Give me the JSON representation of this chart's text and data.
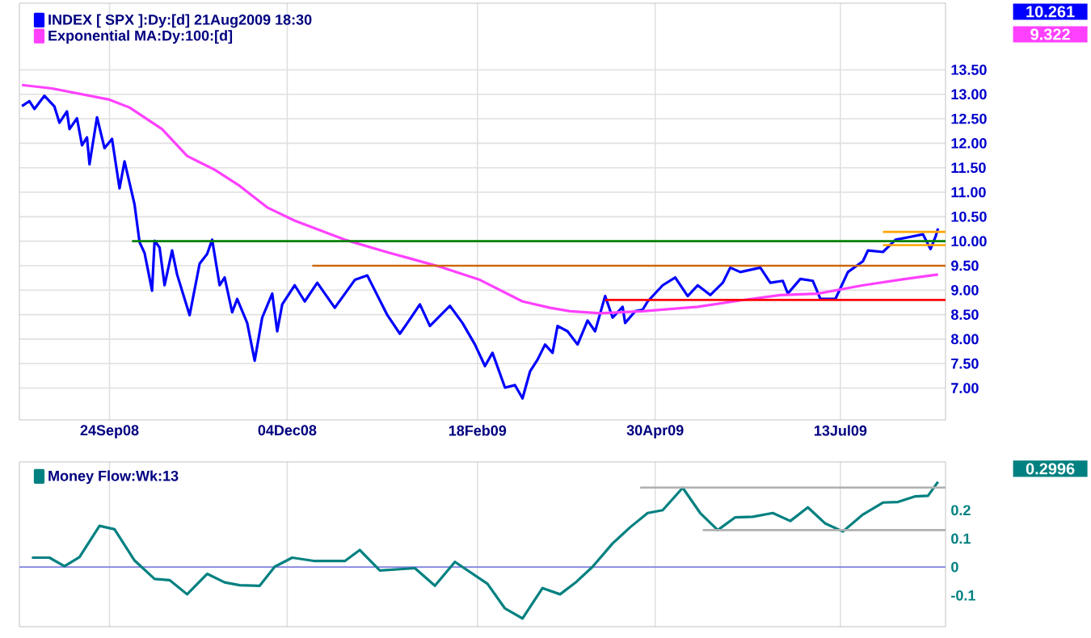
{
  "chart_data": [
    {
      "type": "line",
      "legend": "top left",
      "grid": true,
      "xlim": [
        "2008-08-19",
        "2009-08-24"
      ],
      "ylim": [
        6.35,
        14.86
      ],
      "xticks": [
        {
          "value": "2008-09-24",
          "label": "24Sep08"
        },
        {
          "value": "2008-12-04",
          "label": "04Dec08"
        },
        {
          "value": "2009-02-18",
          "label": "18Feb09"
        },
        {
          "value": "2009-04-30",
          "label": "30Apr09"
        },
        {
          "value": "2009-07-13",
          "label": "13Jul09"
        }
      ],
      "yticks": [
        {
          "value": 7,
          "label": "7.00"
        },
        {
          "value": 7.5,
          "label": "7.50"
        },
        {
          "value": 8,
          "label": "8.00"
        },
        {
          "value": 8.5,
          "label": "8.50"
        },
        {
          "value": 9,
          "label": "9.00"
        },
        {
          "value": 9.5,
          "label": "9.50"
        },
        {
          "value": 10,
          "label": "10.00"
        },
        {
          "value": 10.5,
          "label": "10.50"
        },
        {
          "value": 11,
          "label": "11.00"
        },
        {
          "value": 11.5,
          "label": "11.50"
        },
        {
          "value": 12,
          "label": "12.00"
        },
        {
          "value": 12.5,
          "label": "12.50"
        },
        {
          "value": 13,
          "label": "13.00"
        },
        {
          "value": 13.5,
          "label": "13.50"
        }
      ],
      "annotations": [
        "10.261",
        "9.322"
      ],
      "series": [
        {
          "name": "INDEX [ SPX ]:Dy:[d]  21Aug2009 18:30",
          "color": "#0000ff",
          "x": [
            "2008-08-20",
            "2008-08-23",
            "2008-08-25",
            "2008-08-29",
            "2008-09-02",
            "2008-09-04",
            "2008-09-07",
            "2008-09-08",
            "2008-09-11",
            "2008-09-13",
            "2008-09-15",
            "2008-09-16",
            "2008-09-19",
            "2008-09-22",
            "2008-09-25",
            "2008-09-28",
            "2008-09-30",
            "2008-10-04",
            "2008-10-06",
            "2008-10-08",
            "2008-10-11",
            "2008-10-12",
            "2008-10-14",
            "2008-10-16",
            "2008-10-19",
            "2008-10-21",
            "2008-10-26",
            "2008-10-30",
            "2008-11-02",
            "2008-11-04",
            "2008-11-07",
            "2008-11-09",
            "2008-11-12",
            "2008-11-14",
            "2008-11-18",
            "2008-11-21",
            "2008-11-24",
            "2008-11-28",
            "2008-11-30",
            "2008-12-02",
            "2008-12-07",
            "2008-12-11",
            "2008-12-16",
            "2008-12-23",
            "2008-12-31",
            "2009-01-05",
            "2009-01-13",
            "2009-01-18",
            "2009-01-21",
            "2009-01-26",
            "2009-01-30",
            "2009-02-07",
            "2009-02-12",
            "2009-02-17",
            "2009-02-21",
            "2009-02-24",
            "2009-03-01",
            "2009-03-05",
            "2009-03-08",
            "2009-03-11",
            "2009-03-14",
            "2009-03-17",
            "2009-03-20",
            "2009-03-22",
            "2009-03-26",
            "2009-03-30",
            "2009-04-03",
            "2009-04-06",
            "2009-04-10",
            "2009-04-13",
            "2009-04-17",
            "2009-04-18",
            "2009-04-22",
            "2009-04-25",
            "2009-04-27",
            "2009-05-03",
            "2009-05-08",
            "2009-05-13",
            "2009-05-17",
            "2009-05-22",
            "2009-05-27",
            "2009-05-30",
            "2009-06-03",
            "2009-06-11",
            "2009-06-15",
            "2009-06-20",
            "2009-06-22",
            "2009-06-27",
            "2009-07-02",
            "2009-07-05",
            "2009-07-11",
            "2009-07-16",
            "2009-07-22",
            "2009-07-24",
            "2009-07-30",
            "2009-08-04",
            "2009-08-10",
            "2009-08-15",
            "2009-08-18",
            "2009-08-20",
            "2009-08-21"
          ],
          "values": [
            12.76,
            12.86,
            12.7,
            12.97,
            12.75,
            12.42,
            12.65,
            12.29,
            12.51,
            11.96,
            12.12,
            11.57,
            12.53,
            11.9,
            12.09,
            11.08,
            11.63,
            10.75,
            9.98,
            9.76,
            8.99,
            10.01,
            9.87,
            9.1,
            9.81,
            9.32,
            8.49,
            9.54,
            9.74,
            10.03,
            9.1,
            9.26,
            8.55,
            8.82,
            8.33,
            7.56,
            8.44,
            8.93,
            8.16,
            8.71,
            9.1,
            8.77,
            9.15,
            8.64,
            9.21,
            9.3,
            8.49,
            8.11,
            8.33,
            8.71,
            8.27,
            8.68,
            8.33,
            7.89,
            7.45,
            7.72,
            7.01,
            7.06,
            6.79,
            7.34,
            7.58,
            7.89,
            7.72,
            8.27,
            8.16,
            7.89,
            8.38,
            8.16,
            8.88,
            8.44,
            8.66,
            8.33,
            8.57,
            8.6,
            8.77,
            9.1,
            9.26,
            8.88,
            9.1,
            8.9,
            9.15,
            9.46,
            9.37,
            9.46,
            9.15,
            9.19,
            8.93,
            9.23,
            9.19,
            8.82,
            8.82,
            9.37,
            9.59,
            9.81,
            9.78,
            10.03,
            10.09,
            10.14,
            9.84,
            10.09,
            10.26
          ]
        },
        {
          "name": "Exponential MA:Dy:100:[d]",
          "color": "#ff40ff",
          "x": [
            "2008-08-20",
            "2008-09-01",
            "2008-09-24",
            "2008-10-02",
            "2008-10-15",
            "2008-10-25",
            "2008-11-05",
            "2008-11-15",
            "2008-11-26",
            "2008-12-07",
            "2008-12-27",
            "2009-01-14",
            "2009-02-03",
            "2009-02-19",
            "2009-03-08",
            "2009-03-19",
            "2009-03-27",
            "2009-04-08",
            "2009-04-25",
            "2009-05-17",
            "2009-06-03",
            "2009-06-19",
            "2009-07-04",
            "2009-07-22",
            "2009-08-08",
            "2009-08-21"
          ],
          "values": [
            13.19,
            13.12,
            12.89,
            12.73,
            12.29,
            11.74,
            11.46,
            11.13,
            10.69,
            10.42,
            10.03,
            9.76,
            9.48,
            9.21,
            8.77,
            8.64,
            8.57,
            8.53,
            8.57,
            8.66,
            8.79,
            8.9,
            8.93,
            9.1,
            9.23,
            9.32
          ]
        },
        {
          "color": "#008000",
          "x": [
            "2008-10-03",
            "2009-08-24"
          ],
          "values": [
            10.0,
            10.0
          ]
        },
        {
          "color": "#cc6600",
          "x": [
            "2008-12-14",
            "2009-08-24"
          ],
          "values": [
            9.5,
            9.5
          ]
        },
        {
          "color": "#ff0000",
          "x": [
            "2009-04-10",
            "2009-08-24"
          ],
          "values": [
            8.8,
            8.8
          ]
        },
        {
          "color": "#ffa500",
          "x": [
            "2009-07-30",
            "2009-08-24"
          ],
          "values": [
            10.19,
            10.19
          ]
        },
        {
          "color": "#ffa500",
          "x": [
            "2009-07-30",
            "2009-08-24"
          ],
          "values": [
            9.92,
            9.92
          ]
        }
      ]
    },
    {
      "type": "line",
      "legend": "top left",
      "grid": "x",
      "tick_labels": "y",
      "xlim": [
        "2008-08-19",
        "2009-08-24"
      ],
      "ylim": [
        -0.21,
        0.37
      ],
      "xticks": [
        {
          "value": "2008-09-24",
          "label": null
        },
        {
          "value": "2008-12-04",
          "label": null
        },
        {
          "value": "2009-02-18",
          "label": null
        },
        {
          "value": "2009-04-30",
          "label": null
        },
        {
          "value": "2009-07-13",
          "label": null
        }
      ],
      "yticks": [
        -0.1,
        0,
        0.1,
        0.2
      ],
      "annotations": [
        "0.2996"
      ],
      "ref_lines": [
        {
          "axis": "y",
          "value": 0,
          "color": "#8080e0"
        }
      ],
      "series": [
        {
          "name": "Money Flow:Wk:13",
          "color": "#008080",
          "x": [
            "2008-08-24",
            "2008-08-31",
            "2008-09-06",
            "2008-09-12",
            "2008-09-20",
            "2008-09-26",
            "2008-10-04",
            "2008-10-12",
            "2008-10-18",
            "2008-10-25",
            "2008-11-02",
            "2008-11-09",
            "2008-11-15",
            "2008-11-23",
            "2008-11-29",
            "2008-12-06",
            "2008-12-15",
            "2008-12-27",
            "2009-01-02",
            "2009-01-10",
            "2009-01-24",
            "2009-02-01",
            "2009-02-09",
            "2009-02-22",
            "2009-03-01",
            "2009-03-08",
            "2009-03-16",
            "2009-03-23",
            "2009-03-29",
            "2009-04-05",
            "2009-04-13",
            "2009-04-20",
            "2009-04-27",
            "2009-05-03",
            "2009-05-11",
            "2009-05-18",
            "2009-05-25",
            "2009-06-01",
            "2009-06-08",
            "2009-06-16",
            "2009-06-23",
            "2009-06-30",
            "2009-07-07",
            "2009-07-14",
            "2009-07-22",
            "2009-07-30",
            "2009-08-05",
            "2009-08-12",
            "2009-08-17",
            "2009-08-21"
          ],
          "values": [
            0.033,
            0.033,
            0.003,
            0.035,
            0.145,
            0.133,
            0.023,
            -0.042,
            -0.046,
            -0.096,
            -0.024,
            -0.054,
            -0.064,
            -0.066,
            0.001,
            0.033,
            0.021,
            0.021,
            0.06,
            -0.012,
            -0.004,
            -0.066,
            0.018,
            -0.059,
            -0.146,
            -0.181,
            -0.074,
            -0.096,
            -0.056,
            0.001,
            0.083,
            0.14,
            0.19,
            0.2,
            0.279,
            0.19,
            0.13,
            0.175,
            0.177,
            0.19,
            0.162,
            0.21,
            0.153,
            0.125,
            0.185,
            0.227,
            0.229,
            0.249,
            0.251,
            0.3
          ]
        },
        {
          "color": "#b0b0b0",
          "x": [
            "2009-04-24",
            "2009-08-24"
          ],
          "values": [
            0.28,
            0.28
          ]
        },
        {
          "color": "#b0b0b0",
          "x": [
            "2009-05-19",
            "2009-08-24"
          ],
          "values": [
            0.13,
            0.13
          ]
        }
      ]
    }
  ]
}
